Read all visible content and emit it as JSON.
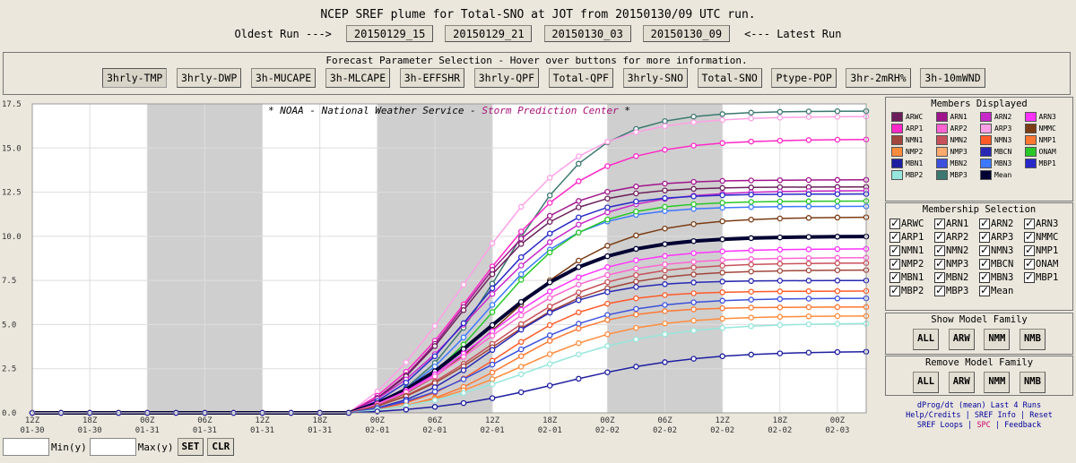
{
  "header": {
    "title": "NCEP SREF plume for Total-SNO at JOT from 20150130/09 UTC run.",
    "oldest_label": "Oldest Run --->",
    "latest_label": "<--- Latest Run",
    "runs": [
      "20150129_15",
      "20150129_21",
      "20150130_03",
      "20150130_09"
    ]
  },
  "params": {
    "title": "Forecast Parameter Selection - Hover over buttons for more information.",
    "buttons": [
      "3hrly-TMP",
      "3hrly-DWP",
      "3h-MUCAPE",
      "3h-MLCAPE",
      "3h-EFFSHR",
      "3hrly-QPF",
      "Total-QPF",
      "3hrly-SNO",
      "Total-SNO",
      "Ptype-POP",
      "3hr-2mRH%",
      "3h-10mWND"
    ]
  },
  "members_displayed": {
    "title": "Members Displayed",
    "items": [
      {
        "name": "ARWC",
        "color": "#6b1e5a"
      },
      {
        "name": "ARN1",
        "color": "#a0148c"
      },
      {
        "name": "ARN2",
        "color": "#c828c8"
      },
      {
        "name": "ARN3",
        "color": "#ff32ff"
      },
      {
        "name": "ARP1",
        "color": "#ff28c8"
      },
      {
        "name": "ARP2",
        "color": "#ff64d2"
      },
      {
        "name": "ARP3",
        "color": "#ffa0e6"
      },
      {
        "name": "NMMC",
        "color": "#7a3c14"
      },
      {
        "name": "NMN1",
        "color": "#a0463c"
      },
      {
        "name": "NMN2",
        "color": "#c8505a"
      },
      {
        "name": "NMN3",
        "color": "#ff5a28"
      },
      {
        "name": "NMP1",
        "color": "#ff7832"
      },
      {
        "name": "NMP2",
        "color": "#ff8c3c"
      },
      {
        "name": "NMP3",
        "color": "#ffaa6e"
      },
      {
        "name": "MBCN",
        "color": "#2828b4"
      },
      {
        "name": "ONAM",
        "color": "#28c828"
      },
      {
        "name": "MBN1",
        "color": "#1e1ea0"
      },
      {
        "name": "MBN2",
        "color": "#3c50dc"
      },
      {
        "name": "MBN3",
        "color": "#3c78ff"
      },
      {
        "name": "MBP1",
        "color": "#2828c8"
      },
      {
        "name": "MBP2",
        "color": "#96e6dc"
      },
      {
        "name": "MBP3",
        "color": "#3c7870"
      },
      {
        "name": "Mean",
        "color": "#000033"
      }
    ]
  },
  "membership_selection": {
    "title": "Membership Selection",
    "items": [
      "ARWC",
      "ARN1",
      "ARN2",
      "ARN3",
      "ARP1",
      "ARP2",
      "ARP3",
      "NMMC",
      "NMN1",
      "NMN2",
      "NMN3",
      "NMP1",
      "NMP2",
      "NMP3",
      "MBCN",
      "ONAM",
      "MBN1",
      "MBN2",
      "MBN3",
      "MBP1",
      "MBP2",
      "MBP3",
      "Mean"
    ]
  },
  "show_family": {
    "title": "Show Model Family",
    "buttons": [
      "ALL",
      "ARW",
      "NMM",
      "NMB"
    ]
  },
  "remove_family": {
    "title": "Remove Model Family",
    "buttons": [
      "ALL",
      "ARW",
      "NMM",
      "NMB"
    ]
  },
  "links": {
    "line1": "dProg/dt (mean) Last 4 Runs",
    "line2": "Help/Credits | SREF Info | Reset",
    "line3a": "SREF Loops |",
    "line3b": "SPC",
    "line3c": "| Feedback"
  },
  "bottom": {
    "min_label": "Min(y)",
    "max_label": "Max(y)",
    "set_label": "SET",
    "clr_label": "CLR"
  },
  "chart_data": {
    "type": "line",
    "banner": {
      "prefix": "*",
      "noaa": "NOAA - National Weather Service -",
      "spc": "Storm Prediction Center",
      "suffix": "*"
    },
    "ylim": [
      0,
      17.5
    ],
    "yticks": [
      "0.0",
      "2.5",
      "5.0",
      "7.5",
      "10.0",
      "12.5",
      "15.0",
      "17.5"
    ],
    "x_hours": [
      0,
      3,
      6,
      9,
      12,
      15,
      18,
      21,
      24,
      27,
      30,
      33,
      36,
      39,
      42,
      45,
      48,
      51,
      54,
      57,
      60,
      63,
      66,
      69,
      72,
      75,
      78,
      81,
      84,
      87
    ],
    "xticks": [
      {
        "h": 0,
        "t": "12Z",
        "d": "01-30"
      },
      {
        "h": 6,
        "t": "18Z",
        "d": "01-30"
      },
      {
        "h": 12,
        "t": "00Z",
        "d": "01-31"
      },
      {
        "h": 18,
        "t": "06Z",
        "d": "01-31"
      },
      {
        "h": 24,
        "t": "12Z",
        "d": "01-31"
      },
      {
        "h": 30,
        "t": "18Z",
        "d": "01-31"
      },
      {
        "h": 36,
        "t": "00Z",
        "d": "02-01"
      },
      {
        "h": 42,
        "t": "06Z",
        "d": "02-01"
      },
      {
        "h": 48,
        "t": "12Z",
        "d": "02-01"
      },
      {
        "h": 54,
        "t": "18Z",
        "d": "02-01"
      },
      {
        "h": 60,
        "t": "00Z",
        "d": "02-02"
      },
      {
        "h": 66,
        "t": "06Z",
        "d": "02-02"
      },
      {
        "h": 72,
        "t": "12Z",
        "d": "02-02"
      },
      {
        "h": 78,
        "t": "18Z",
        "d": "02-02"
      },
      {
        "h": 84,
        "t": "00Z",
        "d": "02-03"
      }
    ],
    "night_bands": [
      [
        12,
        24
      ],
      [
        36,
        48
      ],
      [
        60,
        72
      ]
    ],
    "series": [
      {
        "name": "MBP3",
        "color": "#3c7870",
        "final": 17.1,
        "mid": 49,
        "w": 5
      },
      {
        "name": "ARP3",
        "color": "#ffa0e6",
        "final": 16.8,
        "mid": 45,
        "w": 6
      },
      {
        "name": "ARP1",
        "color": "#ff28c8",
        "final": 15.5,
        "mid": 46,
        "w": 6
      },
      {
        "name": "ARN1",
        "color": "#a0148c",
        "final": 13.2,
        "mid": 45,
        "w": 5
      },
      {
        "name": "ARWC",
        "color": "#6b1e5a",
        "final": 12.8,
        "mid": 45,
        "w": 5
      },
      {
        "name": "ARN2",
        "color": "#c828c8",
        "final": 12.6,
        "mid": 46,
        "w": 6
      },
      {
        "name": "MBP1",
        "color": "#2828c8",
        "final": 12.4,
        "mid": 46,
        "w": 5
      },
      {
        "name": "MBN3",
        "color": "#3c78ff",
        "final": 11.7,
        "mid": 47,
        "w": 5
      },
      {
        "name": "ONAM",
        "color": "#28c828",
        "final": 12.0,
        "mid": 48,
        "w": 5
      },
      {
        "name": "NMMC",
        "color": "#7a3c14",
        "final": 11.1,
        "mid": 49,
        "w": 6
      },
      {
        "name": "Mean",
        "color": "#000033",
        "final": 10.0,
        "mid": 47,
        "w": 6
      },
      {
        "name": "ARN3",
        "color": "#ff32ff",
        "final": 9.3,
        "mid": 47,
        "w": 6
      },
      {
        "name": "ARP2",
        "color": "#ff64d2",
        "final": 8.8,
        "mid": 47,
        "w": 6
      },
      {
        "name": "NMN2",
        "color": "#c8505a",
        "final": 8.5,
        "mid": 48,
        "w": 6
      },
      {
        "name": "NMN1",
        "color": "#a0463c",
        "final": 8.1,
        "mid": 48,
        "w": 6
      },
      {
        "name": "MBCN",
        "color": "#2828b4",
        "final": 7.5,
        "mid": 48,
        "w": 5
      },
      {
        "name": "NMN3",
        "color": "#ff5a28",
        "final": 6.9,
        "mid": 49,
        "w": 5
      },
      {
        "name": "MBN2",
        "color": "#3c50dc",
        "final": 6.5,
        "mid": 49,
        "w": 6
      },
      {
        "name": "NMP1",
        "color": "#ff7832",
        "final": 6.0,
        "mid": 50,
        "w": 5
      },
      {
        "name": "NMP2",
        "color": "#ff8c3c",
        "final": 5.5,
        "mid": 51,
        "w": 6
      },
      {
        "name": "MBP2",
        "color": "#96e6dc",
        "final": 5.1,
        "mid": 52,
        "w": 7
      },
      {
        "name": "MBN1",
        "color": "#1e1ea0",
        "final": 3.5,
        "mid": 55,
        "w": 7
      }
    ]
  }
}
